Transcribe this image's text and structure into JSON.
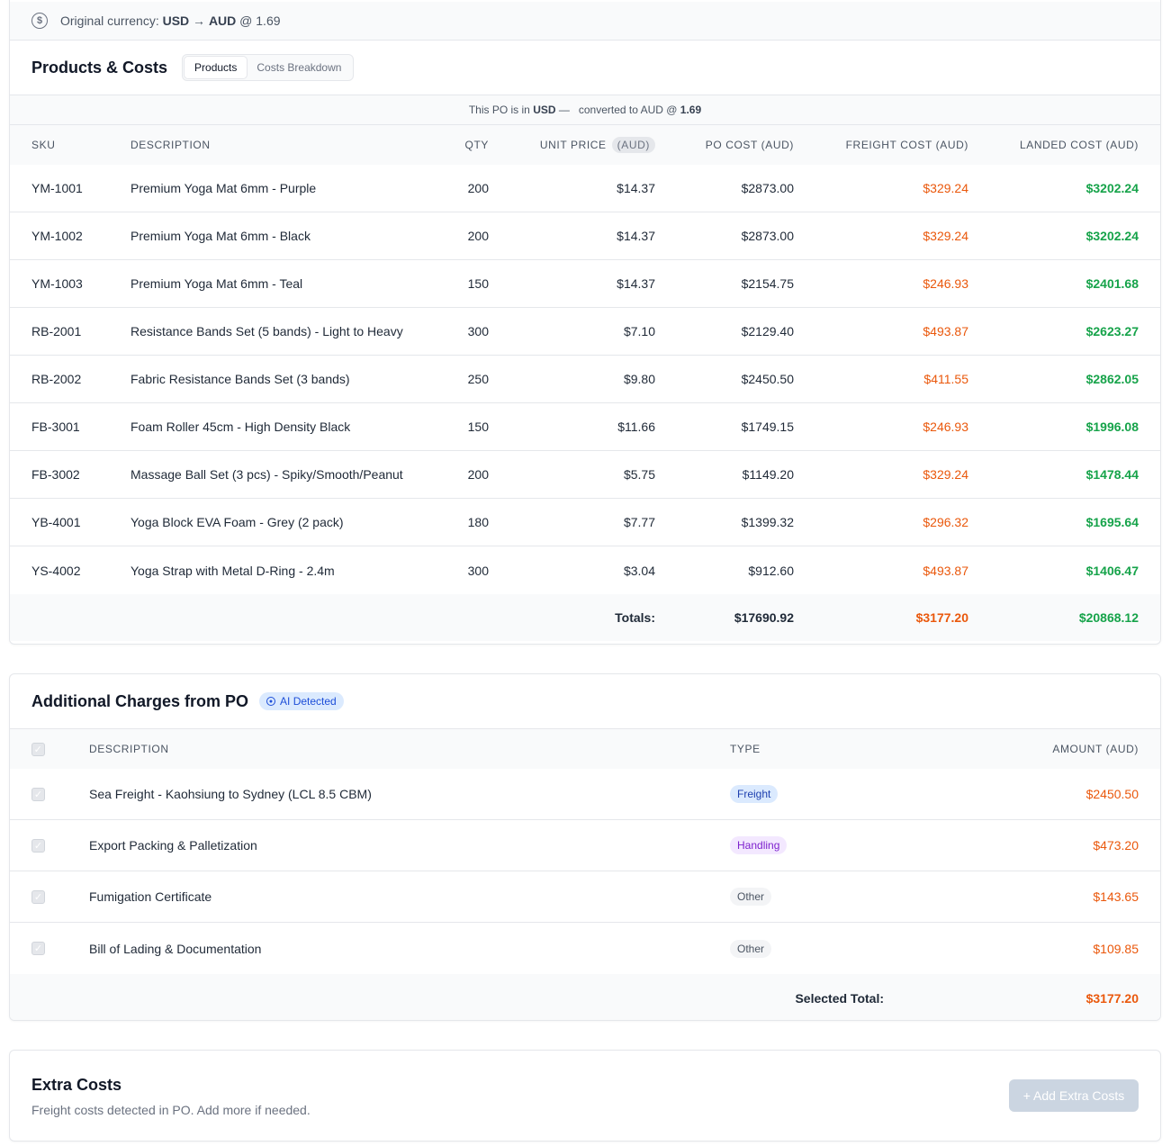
{
  "currency_strip": {
    "prefix": "Original currency:",
    "from": "USD",
    "arrow": "→",
    "to": "AUD",
    "rate_text": "@ 1.69"
  },
  "products_card": {
    "title": "Products & Costs",
    "tabs": [
      {
        "label": "Products",
        "active": true
      },
      {
        "label": "Costs Breakdown",
        "active": false
      }
    ],
    "po_note": {
      "prefix": "This PO is in",
      "currency": "USD",
      "dash": "—",
      "converted": "converted to AUD @",
      "rate": "1.69"
    },
    "columns": {
      "sku": "SKU",
      "description": "DESCRIPTION",
      "qty": "QTY",
      "unit_price": "UNIT PRICE",
      "unit_price_pill": "(AUD)",
      "po_cost": "PO COST (AUD)",
      "freight_cost": "FREIGHT COST (AUD)",
      "landed_cost": "LANDED COST (AUD)"
    },
    "rows": [
      {
        "sku": "YM-1001",
        "description": "Premium Yoga Mat 6mm - Purple",
        "qty": "200",
        "unit_price": "$14.37",
        "po_cost": "$2873.00",
        "freight": "$329.24",
        "landed": "$3202.24"
      },
      {
        "sku": "YM-1002",
        "description": "Premium Yoga Mat 6mm - Black",
        "qty": "200",
        "unit_price": "$14.37",
        "po_cost": "$2873.00",
        "freight": "$329.24",
        "landed": "$3202.24"
      },
      {
        "sku": "YM-1003",
        "description": "Premium Yoga Mat 6mm - Teal",
        "qty": "150",
        "unit_price": "$14.37",
        "po_cost": "$2154.75",
        "freight": "$246.93",
        "landed": "$2401.68"
      },
      {
        "sku": "RB-2001",
        "description": "Resistance Bands Set (5 bands) - Light to Heavy",
        "qty": "300",
        "unit_price": "$7.10",
        "po_cost": "$2129.40",
        "freight": "$493.87",
        "landed": "$2623.27"
      },
      {
        "sku": "RB-2002",
        "description": "Fabric Resistance Bands Set (3 bands)",
        "qty": "250",
        "unit_price": "$9.80",
        "po_cost": "$2450.50",
        "freight": "$411.55",
        "landed": "$2862.05"
      },
      {
        "sku": "FB-3001",
        "description": "Foam Roller 45cm - High Density Black",
        "qty": "150",
        "unit_price": "$11.66",
        "po_cost": "$1749.15",
        "freight": "$246.93",
        "landed": "$1996.08"
      },
      {
        "sku": "FB-3002",
        "description": "Massage Ball Set (3 pcs) - Spiky/Smooth/Peanut",
        "qty": "200",
        "unit_price": "$5.75",
        "po_cost": "$1149.20",
        "freight": "$329.24",
        "landed": "$1478.44"
      },
      {
        "sku": "YB-4001",
        "description": "Yoga Block EVA Foam - Grey (2 pack)",
        "qty": "180",
        "unit_price": "$7.77",
        "po_cost": "$1399.32",
        "freight": "$296.32",
        "landed": "$1695.64"
      },
      {
        "sku": "YS-4002",
        "description": "Yoga Strap with Metal D-Ring - 2.4m",
        "qty": "300",
        "unit_price": "$3.04",
        "po_cost": "$912.60",
        "freight": "$493.87",
        "landed": "$1406.47"
      }
    ],
    "totals": {
      "label": "Totals:",
      "po_cost": "$17690.92",
      "freight": "$3177.20",
      "landed": "$20868.12"
    }
  },
  "charges_card": {
    "title": "Additional Charges from PO",
    "badge": "AI Detected",
    "columns": {
      "description": "DESCRIPTION",
      "type": "TYPE",
      "amount": "AMOUNT (AUD)"
    },
    "rows": [
      {
        "description": "Sea Freight - Kaohsiung to Sydney (LCL 8.5 CBM)",
        "type": "Freight",
        "amount": "$2450.50",
        "checked": true
      },
      {
        "description": "Export Packing & Palletization",
        "type": "Handling",
        "amount": "$473.20",
        "checked": true
      },
      {
        "description": "Fumigation Certificate",
        "type": "Other",
        "amount": "$143.65",
        "checked": true
      },
      {
        "description": "Bill of Lading & Documentation",
        "type": "Other",
        "amount": "$109.85",
        "checked": true
      }
    ],
    "selected_total_label": "Selected Total:",
    "selected_total": "$3177.20"
  },
  "extra_costs": {
    "title": "Extra Costs",
    "subtitle": "Freight costs detected in PO. Add more if needed.",
    "button": "+ Add Extra Costs"
  },
  "colors": {
    "freight_orange": "#ea580c",
    "landed_green": "#16a34a",
    "banner_yellow": "#fde68a"
  },
  "icons": {
    "currency": "dollar-circle-icon",
    "ai": "ai-detected-icon",
    "checkbox": "checkbox-checked-icon"
  }
}
